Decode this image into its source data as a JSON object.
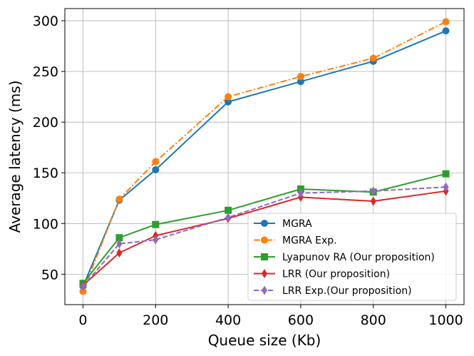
{
  "chart_data": {
    "type": "line",
    "title": "",
    "xlabel": "Queue size (Kb)",
    "ylabel": "Average latency (ms)",
    "x": [
      0,
      100,
      200,
      400,
      600,
      800,
      1000
    ],
    "xticks": [
      0,
      200,
      400,
      600,
      800,
      1000
    ],
    "yticks": [
      50,
      100,
      150,
      200,
      250,
      300
    ],
    "xlim": [
      -50,
      1050
    ],
    "ylim": [
      20,
      312
    ],
    "grid": true,
    "legend_position": "bottom-right",
    "series": [
      {
        "name": "MGRA",
        "values": [
          38,
          123,
          153,
          220,
          240,
          260,
          290
        ],
        "color": "#1f77b4",
        "linestyle": "solid",
        "marker": "circle"
      },
      {
        "name": "MGRA Exp.",
        "values": [
          33,
          124,
          161,
          225,
          245,
          263,
          299
        ],
        "color": "#ff7f0e",
        "linestyle": "dashdot",
        "marker": "circle"
      },
      {
        "name": "Lyapunov RA (Our proposition)",
        "values": [
          41,
          86,
          99,
          113,
          134,
          131,
          149
        ],
        "color": "#2ca02c",
        "linestyle": "solid",
        "marker": "square"
      },
      {
        "name": "LRR (Our proposition)",
        "values": [
          39,
          71,
          88,
          105,
          126,
          122,
          132
        ],
        "color": "#d62728",
        "linestyle": "solid",
        "marker": "thin_diamond"
      },
      {
        "name": "LRR Exp.(Our proposition)",
        "values": [
          38,
          80,
          84,
          106,
          130,
          132,
          136
        ],
        "color": "#9467bd",
        "linestyle": "dashed",
        "marker": "thin_diamond"
      }
    ]
  }
}
